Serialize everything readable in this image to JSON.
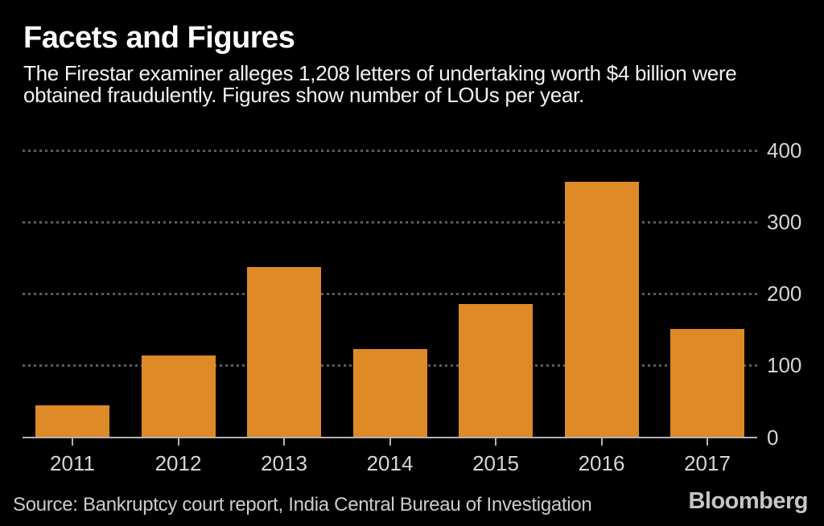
{
  "header": {
    "title": "Facets and Figures",
    "subtitle": "The Firestar examiner alleges 1,208 letters of undertaking worth $4 billion were obtained fraudulently. Figures show number of LOUs per year."
  },
  "footer": {
    "source": "Source: Bankruptcy court report, India Central Bureau of Investigation",
    "logo": "Bloomberg"
  },
  "colors": {
    "background": "#000000",
    "bar": "#DD8A27",
    "title_text": "#FFFFFF",
    "subtitle_text": "#F2F2F2",
    "axis_line": "#B3B3B3",
    "axis_tick_text": "#D6D6D6",
    "gridline": "#5C5C5C",
    "source_text": "#CCCCCC",
    "logo_text": "#C6C6C6"
  },
  "chart_data": {
    "type": "bar",
    "title": "Facets and Figures",
    "subtitle": "The Firestar examiner alleges 1,208 letters of undertaking worth $4 billion were obtained fraudulently. Figures show number of LOUs per year.",
    "categories": [
      "2011",
      "2012",
      "2013",
      "2014",
      "2015",
      "2016",
      "2017"
    ],
    "values": [
      44,
      114,
      237,
      122,
      185,
      356,
      150
    ],
    "series_name": "Number of LOUs per year",
    "total_implied": 1208,
    "xlabel": "",
    "ylabel": "",
    "ylim": [
      0,
      400
    ],
    "yticks": [
      0,
      100,
      200,
      300,
      400
    ],
    "y_axis_position": "right",
    "grid": "horizontal-dotted",
    "legend": "none"
  }
}
